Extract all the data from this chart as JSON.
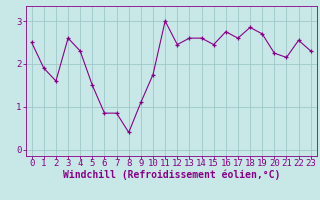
{
  "x": [
    0,
    1,
    2,
    3,
    4,
    5,
    6,
    7,
    8,
    9,
    10,
    11,
    12,
    13,
    14,
    15,
    16,
    17,
    18,
    19,
    20,
    21,
    22,
    23
  ],
  "y": [
    2.5,
    1.9,
    1.6,
    2.6,
    2.3,
    1.5,
    0.85,
    0.85,
    0.4,
    1.1,
    1.75,
    3.0,
    2.45,
    2.6,
    2.6,
    2.45,
    2.75,
    2.6,
    2.85,
    2.7,
    2.25,
    2.15,
    2.55,
    2.3
  ],
  "line_color": "#880088",
  "marker": "+",
  "bg_color": "#c8e8e8",
  "grid_color": "#a0c8c8",
  "xlabel": "Windchill (Refroidissement éolien,°C)",
  "xlabel_color": "#880088",
  "tick_color": "#880088",
  "spine_color": "#880088",
  "ylim": [
    -0.15,
    3.35
  ],
  "xlim": [
    -0.5,
    23.5
  ],
  "yticks": [
    0,
    1,
    2,
    3
  ],
  "xticks": [
    0,
    1,
    2,
    3,
    4,
    5,
    6,
    7,
    8,
    9,
    10,
    11,
    12,
    13,
    14,
    15,
    16,
    17,
    18,
    19,
    20,
    21,
    22,
    23
  ],
  "tick_fontsize": 6.5,
  "xlabel_fontsize": 7.0,
  "linewidth": 0.8,
  "markersize": 3.5
}
